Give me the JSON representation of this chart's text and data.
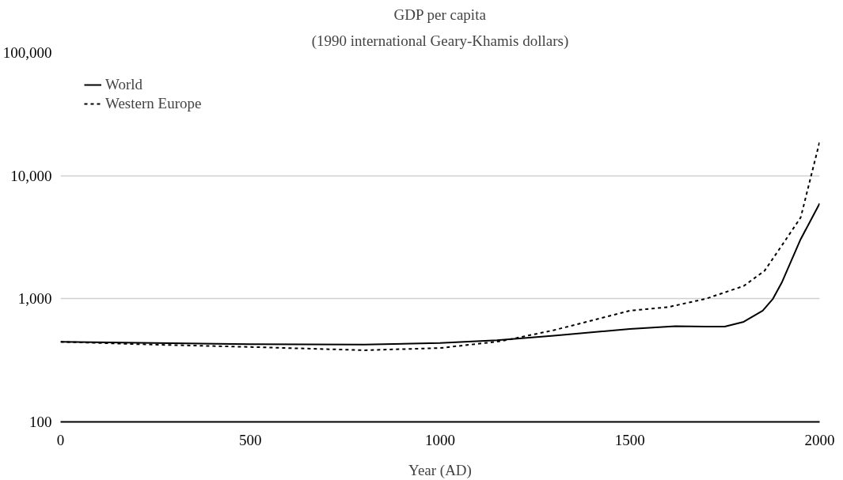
{
  "chart_data": {
    "type": "line",
    "title": "GDP per capita",
    "subtitle": "(1990 international Geary-Khamis dollars)",
    "xlabel": "Year (AD)",
    "log": "y",
    "grid": "y",
    "legend": "top left",
    "xlim": [
      0,
      2000
    ],
    "xticks": [
      0,
      500,
      1000,
      1500,
      2000
    ],
    "ylim": [
      100,
      100000
    ],
    "yticks": [
      {
        "value": 100,
        "label": "100"
      },
      {
        "value": 1000,
        "label": "1,000"
      },
      {
        "value": 10000,
        "label": "10,000"
      },
      {
        "value": 100000,
        "label": "100,000"
      }
    ],
    "series": [
      {
        "name": "World",
        "color": "#000000",
        "line_style": "solid",
        "x": [
          0,
          250,
          500,
          800,
          1000,
          1150,
          1300,
          1500,
          1620,
          1700,
          1750,
          1800,
          1850,
          1877,
          1900,
          1950,
          2000
        ],
        "values": [
          447,
          437,
          428,
          425,
          437,
          460,
          502,
          568,
          599,
          595,
          594,
          650,
          800,
          1000,
          1350,
          3050,
          5950
        ]
      },
      {
        "name": "Western Europe",
        "color": "#000000",
        "line_style": "dashed",
        "x": [
          0,
          250,
          500,
          800,
          1000,
          1160,
          1300,
          1500,
          1600,
          1700,
          1800,
          1855,
          1900,
          1950,
          2000
        ],
        "values": [
          447,
          424,
          406,
          382,
          398,
          452,
          556,
          800,
          855,
          1000,
          1270,
          1690,
          2700,
          4570,
          18900
        ]
      }
    ]
  }
}
